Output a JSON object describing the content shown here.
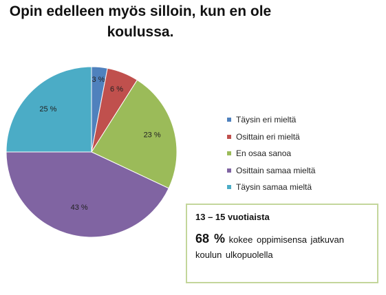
{
  "chart_data": {
    "type": "pie",
    "title_line1": "Opin edelleen myös silloin, kun en ole",
    "title_line2": "koulussa.",
    "slices": [
      {
        "label": "Täysin eri mieltä",
        "value": 3,
        "value_label": "3 %",
        "color": "#4f81bd"
      },
      {
        "label": "Osittain eri mieltä",
        "value": 6,
        "value_label": "6 %",
        "color": "#c0504d"
      },
      {
        "label": "En osaa sanoa",
        "value": 23,
        "value_label": "23 %",
        "color": "#9bbb59"
      },
      {
        "label": "Osittain samaa mieltä",
        "value": 43,
        "value_label": "43 %",
        "color": "#8064a2"
      },
      {
        "label": "Täysin samaa mieltä",
        "value": 25,
        "value_label": "25 %",
        "color": "#4bacc6"
      }
    ],
    "legend_position": "right"
  },
  "infobox": {
    "heading": "13 – 15 vuotiaista",
    "percent": "68 %",
    "text": "kokee oppimisensa jatkuvan koulun ulkopuolella"
  }
}
